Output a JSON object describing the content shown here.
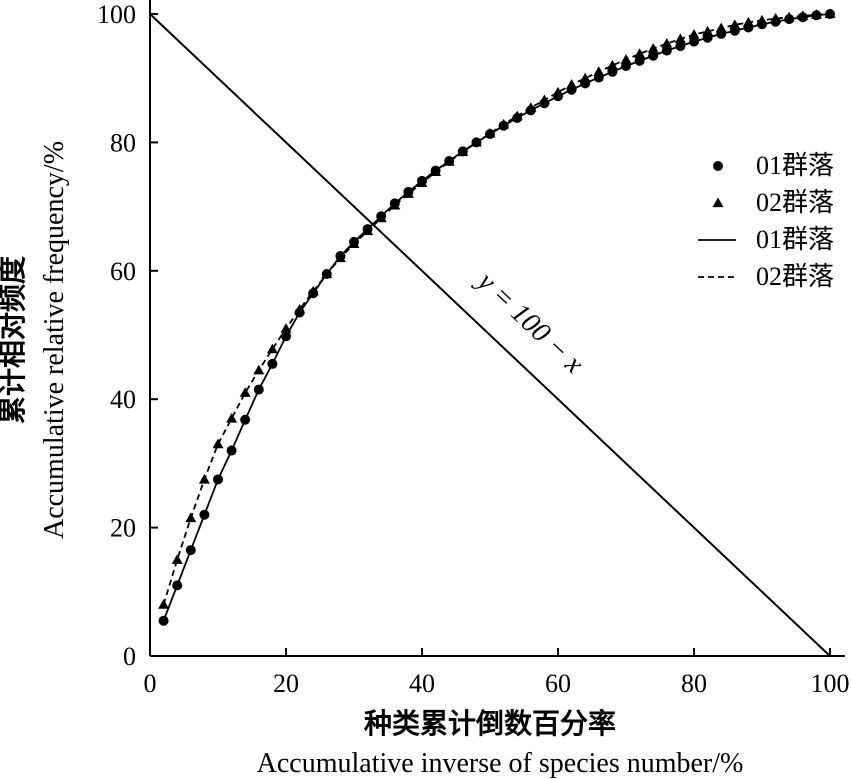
{
  "chart_data": {
    "type": "scatter",
    "title": "",
    "xlabel": "种类累计倒数百分率",
    "xlabel_en": "Accumulative inverse of species number/%",
    "ylabel": "累计相对频度",
    "ylabel_en": "Accumulative relative frequency/%",
    "xlim": [
      0,
      100
    ],
    "ylim": [
      0,
      100
    ],
    "xticks": [
      0,
      20,
      40,
      60,
      80,
      100
    ],
    "yticks": [
      0,
      20,
      40,
      60,
      80,
      100
    ],
    "grid": false,
    "legend_position": "right",
    "legend": [
      {
        "label": "01群落",
        "marker": "circle"
      },
      {
        "label": "02群落",
        "marker": "triangle"
      },
      {
        "label": "01群落",
        "line": "solid"
      },
      {
        "label": "02群落",
        "line": "dashed"
      }
    ],
    "annotation": "y = 100 − x",
    "reference_line": {
      "label": "y = 100 − x",
      "x": [
        0,
        100
      ],
      "y": [
        100,
        0
      ]
    },
    "series": [
      {
        "name": "01群落",
        "marker": "circle",
        "line": "solid",
        "x": [
          2,
          4,
          6,
          8,
          10,
          12,
          14,
          16,
          18,
          20,
          22,
          24,
          26,
          28,
          30,
          32,
          34,
          36,
          38,
          40,
          42,
          44,
          46,
          48,
          50,
          52,
          54,
          56,
          58,
          60,
          62,
          64,
          66,
          68,
          70,
          72,
          74,
          76,
          78,
          80,
          82,
          84,
          86,
          88,
          90,
          92,
          94,
          96,
          98,
          100
        ],
        "y": [
          5.5,
          11,
          16.5,
          22,
          27.5,
          32,
          36.8,
          41.5,
          45.5,
          49.8,
          53.5,
          56.5,
          59.5,
          62.3,
          64.5,
          66.5,
          68.5,
          70.5,
          72.3,
          74,
          75.6,
          77.1,
          78.6,
          80,
          81.3,
          82.6,
          83.8,
          85,
          86.1,
          87.2,
          88.2,
          89.2,
          90.1,
          91,
          91.9,
          92.7,
          93.5,
          94.3,
          95,
          95.7,
          96.3,
          96.9,
          97.4,
          97.9,
          98.4,
          98.8,
          99.2,
          99.5,
          99.8,
          100
        ]
      },
      {
        "name": "02群落",
        "marker": "triangle",
        "line": "dashed",
        "x": [
          2,
          4,
          6,
          8,
          10,
          12,
          14,
          16,
          18,
          20,
          22,
          24,
          26,
          28,
          30,
          32,
          34,
          36,
          38,
          40,
          42,
          44,
          46,
          48,
          50,
          52,
          54,
          56,
          58,
          60,
          62,
          64,
          66,
          68,
          70,
          72,
          74,
          76,
          78,
          80,
          82,
          84,
          86,
          88,
          90,
          92,
          94,
          96,
          98,
          100
        ],
        "y": [
          8,
          15,
          21.5,
          27.5,
          33,
          37,
          41,
          44.5,
          47.8,
          51,
          54,
          56.8,
          59.5,
          62,
          64.2,
          66.2,
          68.2,
          70.2,
          72,
          73.7,
          75.4,
          77,
          78.5,
          80,
          81.4,
          82.8,
          84.1,
          85.4,
          86.6,
          87.8,
          89,
          90,
          91,
          92,
          92.9,
          93.8,
          94.6,
          95.4,
          96.1,
          96.8,
          97.3,
          97.8,
          98.3,
          98.7,
          99,
          99.3,
          99.5,
          99.7,
          99.9,
          100
        ]
      }
    ]
  }
}
